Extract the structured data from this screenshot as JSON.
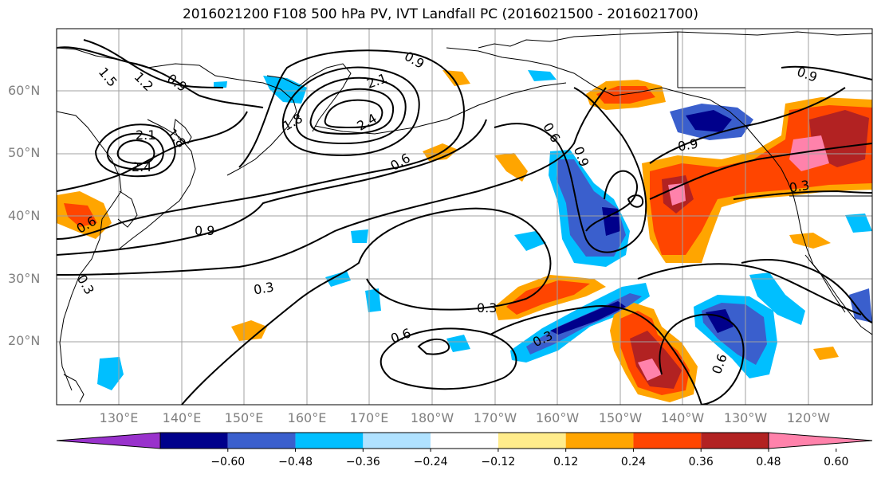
{
  "title": "2016021200 F108 500 hPa PV, IVT Landfall PC (2016021500 - 2016021700)",
  "lat_labels": [
    "60°N",
    "50°N",
    "40°N",
    "30°N",
    "20°N"
  ],
  "lon_labels": [
    "130°E",
    "140°E",
    "150°E",
    "160°E",
    "170°E",
    "180°W",
    "170°W",
    "160°W",
    "150°W",
    "140°W",
    "130°W",
    "120°W"
  ],
  "contour_labels": [
    "1.5",
    "1.2",
    "0.9",
    "0.9",
    "2.1",
    "1.8",
    "2.4",
    "2.1",
    "1.8",
    "2.4",
    "0.6",
    "0.6",
    "0.9",
    "0.9",
    "0.3",
    "0.6",
    "0.9",
    "0.3",
    "0.3",
    "0.6",
    "0.3",
    "0.6",
    "0.3",
    "0.9"
  ],
  "colorbar": {
    "tick_labels": [
      "−0.60",
      "−0.48",
      "−0.36",
      "−0.24",
      "−0.12",
      "0.12",
      "0.24",
      "0.36",
      "0.48",
      "0.60"
    ],
    "colors": [
      "#9932cc",
      "#00008b",
      "#3a5fcd",
      "#00bfff",
      "#b0e2ff",
      "#ffffff",
      "#ffec8b",
      "#ffa500",
      "#ff4500",
      "#b22222",
      "#ff82ab"
    ]
  },
  "colors": {
    "contour": "#000000",
    "coast": "#000000",
    "grid": "#a0a0a0",
    "axis_labels": "#7f7f7f"
  }
}
